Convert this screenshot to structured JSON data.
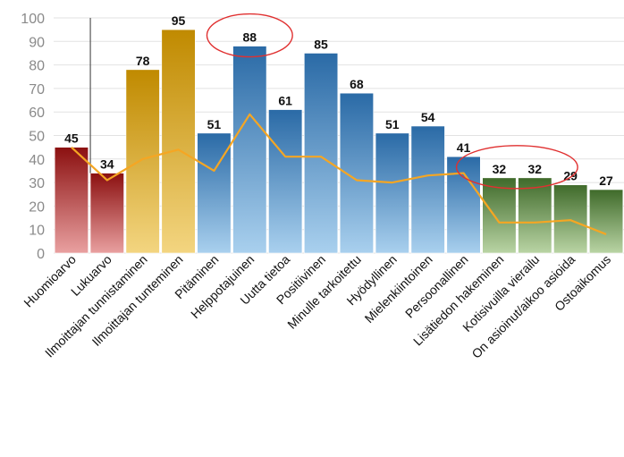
{
  "chart_data": {
    "type": "bar",
    "ylim": [
      0,
      100
    ],
    "yticks": [
      0,
      10,
      20,
      30,
      40,
      50,
      60,
      70,
      80,
      90,
      100
    ],
    "grid": true,
    "categories": [
      "Huomioarvo",
      "Lukuarvo",
      "Ilmoittajan tunnistaminen",
      "Ilmoittajan tunteminen",
      "Pitäminen",
      "Helppotajuinen",
      "Uutta tietoa",
      "Positiivinen",
      "Minulle tarkoitettu",
      "Hyödyllinen",
      "Mielenkiintoinen",
      "Persoonallinen",
      "Lisätiedon hakeminen",
      "Kotisivuilla vierailu",
      "On asioinut/aikoo asioida",
      "Ostoaikomus"
    ],
    "series": [
      {
        "type": "bar",
        "values": [
          45,
          34,
          78,
          95,
          51,
          88,
          61,
          85,
          68,
          51,
          54,
          41,
          32,
          32,
          29,
          27
        ]
      },
      {
        "type": "line",
        "color": "#f5a623",
        "values": [
          45,
          31,
          40,
          44,
          35,
          59,
          41,
          41,
          31,
          30,
          33,
          34,
          13,
          13,
          14,
          8
        ]
      }
    ],
    "bar_groups": [
      {
        "range": [
          0,
          1
        ],
        "colors": [
          "#8b1010",
          "#e9a0a0"
        ]
      },
      {
        "range": [
          2,
          3
        ],
        "colors": [
          "#c08a00",
          "#f3d580"
        ]
      },
      {
        "range": [
          4,
          11
        ],
        "colors": [
          "#2a6aa6",
          "#a9d0ee"
        ]
      },
      {
        "range": [
          12,
          15
        ],
        "colors": [
          "#3f6a2a",
          "#b9d4a4"
        ]
      }
    ],
    "highlight_circles": [
      {
        "around": [
          5
        ]
      },
      {
        "around": [
          12,
          13
        ]
      }
    ],
    "circle_color": "#e03030"
  }
}
